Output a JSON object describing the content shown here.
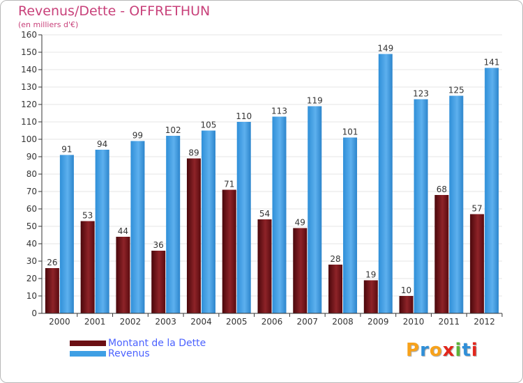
{
  "title": "Revenus/Dette - OFFRETHUN",
  "subtitle": "(en milliers d'€)",
  "brand": {
    "text": "Proxiti",
    "letter_colors": [
      "#f7a21b",
      "#2f8fd8",
      "#f7a21b",
      "#e2261c",
      "#5db43a",
      "#2f8fd8",
      "#e2261c"
    ]
  },
  "colors": {
    "title": "#c8417a",
    "legend_text": "#4b62ff",
    "dette": "#6b0f14",
    "dette_light": "#8e2328",
    "revenus": "#2f8fd8",
    "revenus_light": "#5db0ee",
    "axis": "#333333",
    "grid": "#e4e4e4"
  },
  "legend": [
    {
      "label": "Montant de la Dette",
      "color": "#6b0f14"
    },
    {
      "label": "Revenus",
      "color": "#3f9fe4"
    }
  ],
  "chart_data": {
    "type": "bar",
    "title": "Revenus/Dette - OFFRETHUN",
    "subtitle": "(en milliers d'€)",
    "categories": [
      "2000",
      "2001",
      "2002",
      "2003",
      "2004",
      "2005",
      "2006",
      "2007",
      "2008",
      "2009",
      "2010",
      "2011",
      "2012"
    ],
    "series": [
      {
        "name": "Montant de la Dette",
        "values": [
          26,
          53,
          44,
          36,
          89,
          71,
          54,
          49,
          28,
          19,
          10,
          68,
          57
        ]
      },
      {
        "name": "Revenus",
        "values": [
          91,
          94,
          99,
          102,
          105,
          110,
          113,
          119,
          101,
          149,
          123,
          125,
          141
        ]
      }
    ],
    "ylim": [
      0,
      160
    ],
    "yticks": [
      0,
      10,
      20,
      30,
      40,
      50,
      60,
      70,
      80,
      90,
      100,
      110,
      120,
      130,
      140,
      150,
      160
    ],
    "grid": true,
    "legend_position": "bottom-left"
  }
}
